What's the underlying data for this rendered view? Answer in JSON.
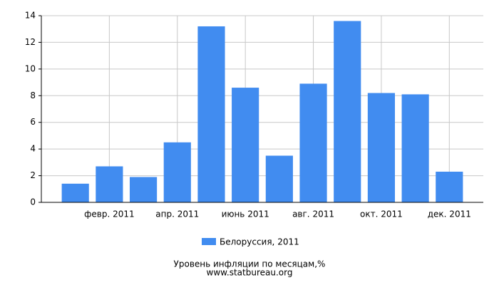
{
  "chart_data": {
    "type": "bar",
    "title": "Уровень инфляции по месяцам,%",
    "source": "www.statbureau.org",
    "categories": [
      null,
      "февр. 2011",
      null,
      "апр. 2011",
      null,
      "июнь 2011",
      null,
      "авг. 2011",
      null,
      "окт. 2011",
      null,
      "дек. 2011"
    ],
    "series": [
      {
        "name": "Белоруссия, 2011",
        "color": "#418cf0",
        "values": [
          1.4,
          2.7,
          1.9,
          4.5,
          13.2,
          8.6,
          3.5,
          8.9,
          13.6,
          8.2,
          8.1,
          2.3
        ]
      }
    ],
    "ylim": [
      0,
      14
    ],
    "yticks": [
      0,
      2,
      4,
      6,
      8,
      10,
      12,
      14
    ],
    "grid": true
  }
}
